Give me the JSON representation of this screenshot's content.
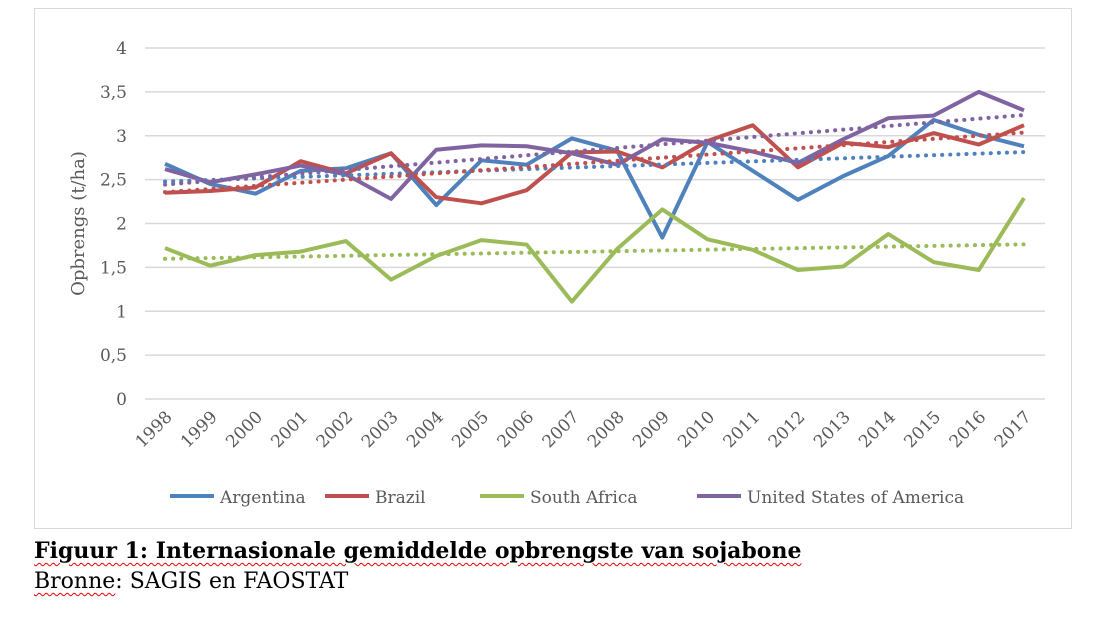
{
  "chart_data": {
    "type": "line",
    "title": "",
    "xlabel": "",
    "ylabel": "Opbrengs (t/ha)",
    "ylim": [
      0,
      4
    ],
    "yticks": [
      "0",
      "0,5",
      "1",
      "1,5",
      "2",
      "2,5",
      "3",
      "3,5",
      "4"
    ],
    "x": [
      "1998",
      "1999",
      "2000",
      "2001",
      "2002",
      "2003",
      "2004",
      "2005",
      "2006",
      "2007",
      "2008",
      "2009",
      "2010",
      "2011",
      "2012",
      "2013",
      "2014",
      "2015",
      "2016",
      "2017"
    ],
    "grid": true,
    "legend_position": "bottom",
    "trendlines": "linear, dotted, per series",
    "series": [
      {
        "name": "Argentina",
        "color": "#4f81bd",
        "values": [
          2.68,
          2.45,
          2.34,
          2.6,
          2.63,
          2.8,
          2.21,
          2.72,
          2.67,
          2.97,
          2.83,
          1.84,
          2.93,
          2.6,
          2.27,
          2.54,
          2.77,
          3.18,
          3.01,
          2.88
        ]
      },
      {
        "name": "Brazil",
        "color": "#c0504d",
        "values": [
          2.35,
          2.37,
          2.41,
          2.71,
          2.57,
          2.8,
          2.3,
          2.23,
          2.38,
          2.81,
          2.82,
          2.64,
          2.94,
          3.12,
          2.64,
          2.92,
          2.87,
          3.03,
          2.9,
          3.12
        ]
      },
      {
        "name": "South Africa",
        "color": "#9bbb59",
        "values": [
          1.72,
          1.52,
          1.64,
          1.68,
          1.8,
          1.36,
          1.63,
          1.81,
          1.76,
          1.11,
          1.71,
          2.16,
          1.82,
          1.7,
          1.47,
          1.51,
          1.88,
          1.56,
          1.47,
          2.29
        ]
      },
      {
        "name": "United States of America",
        "color": "#8064a2",
        "values": [
          2.62,
          2.47,
          2.56,
          2.66,
          2.56,
          2.28,
          2.84,
          2.89,
          2.88,
          2.8,
          2.67,
          2.96,
          2.92,
          2.82,
          2.69,
          2.96,
          3.2,
          3.23,
          3.5,
          3.29
        ]
      }
    ]
  },
  "caption": {
    "title": "Figuur 1: Internasionale gemiddelde opbrengste van sojabone",
    "source_label": "Bronne",
    "source_text": ": SAGIS en FAOSTAT"
  }
}
